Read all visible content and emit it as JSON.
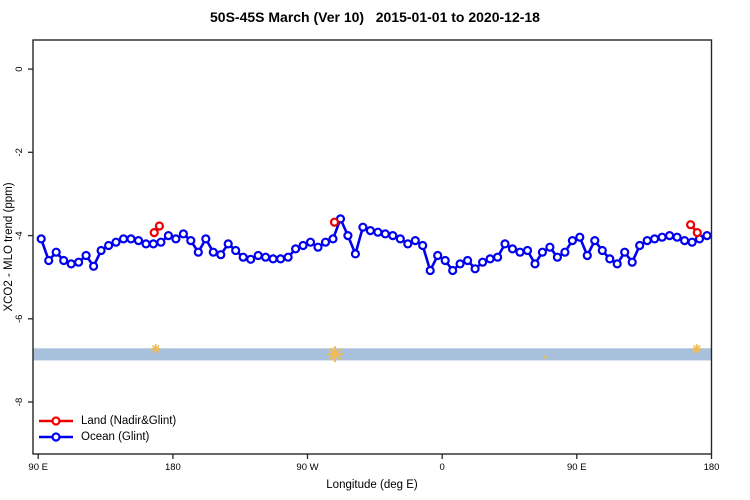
{
  "header": {
    "title": "50S-45S March (Ver 10)   2015-01-01 to 2020-12-18"
  },
  "axes": {
    "x_label": "Longitude (deg E)",
    "y_label": "XCO2 - MLO trend (ppm)"
  },
  "legend": {
    "position": "bottom-left",
    "items": [
      {
        "label": "Land (Nadir&Glint)",
        "color": "#ee0000"
      },
      {
        "label": "Ocean (Glint)",
        "color": "#0000ee"
      }
    ]
  },
  "colors": {
    "axis": "#262626",
    "band": "#a9c0dc",
    "band_marker": "#f0bc55",
    "land": "#ee0000",
    "ocean": "#0000ee",
    "background": "#ffffff"
  },
  "chart_data": {
    "type": "line",
    "title": "50S-45S March (Ver 10)   2015-01-01 to 2020-12-18",
    "xlabel": "Longitude (deg E)",
    "ylabel": "XCO2 - MLO trend (ppm)",
    "xlim": [
      86.5,
      540
    ],
    "ylim": [
      -9.25,
      0.7
    ],
    "grid": false,
    "x_ticks": [
      {
        "value": 90,
        "label": "90 E"
      },
      {
        "value": 180,
        "label": "180"
      },
      {
        "value": 270,
        "label": "90 W"
      },
      {
        "value": 360,
        "label": "0"
      },
      {
        "value": 450,
        "label": "90 E"
      },
      {
        "value": 540,
        "label": "180"
      }
    ],
    "y_ticks": [
      {
        "value": 0,
        "label": "0"
      },
      {
        "value": -2,
        "label": "-2"
      },
      {
        "value": -4,
        "label": "-4"
      },
      {
        "value": -6,
        "label": "-6"
      },
      {
        "value": -8,
        "label": "-8"
      }
    ],
    "series": [
      {
        "name": "Land (Nadir&Glint)",
        "color": "#ee0000",
        "marker": "open-circle",
        "segments": [
          [
            [
              167.5,
              -3.93
            ],
            [
              171,
              -3.77
            ]
          ],
          [
            [
              288,
              -3.68
            ]
          ],
          [
            [
              526,
              -3.74
            ],
            [
              530.5,
              -3.93
            ]
          ]
        ]
      },
      {
        "name": "Ocean (Glint)",
        "color": "#0000ee",
        "marker": "open-circle",
        "x": [
          92,
          97,
          102,
          107,
          112,
          117,
          122,
          127,
          132,
          137,
          142,
          147,
          152,
          157,
          162,
          167,
          172,
          177,
          182,
          187,
          192,
          197,
          202,
          207,
          212,
          217,
          222,
          227,
          232,
          237,
          242,
          247,
          252,
          257,
          262,
          267,
          272,
          277,
          282,
          287,
          292,
          297,
          302,
          307,
          312,
          317,
          322,
          327,
          332,
          337,
          342,
          347,
          352,
          357,
          362,
          367,
          372,
          377,
          382,
          387,
          392,
          397,
          402,
          407,
          412,
          417,
          422,
          427,
          432,
          437,
          442,
          447,
          452,
          457,
          462,
          467,
          472,
          477,
          482,
          487,
          492,
          497,
          502,
          507,
          512,
          517,
          522,
          527,
          532,
          537
        ],
        "values": [
          -4.08,
          -4.6,
          -4.4,
          -4.6,
          -4.68,
          -4.64,
          -4.48,
          -4.74,
          -4.36,
          -4.24,
          -4.16,
          -4.08,
          -4.08,
          -4.12,
          -4.2,
          -4.2,
          -4.16,
          -4.0,
          -4.08,
          -3.96,
          -4.12,
          -4.4,
          -4.08,
          -4.4,
          -4.46,
          -4.2,
          -4.36,
          -4.52,
          -4.57,
          -4.48,
          -4.52,
          -4.56,
          -4.56,
          -4.52,
          -4.32,
          -4.24,
          -4.16,
          -4.28,
          -4.16,
          -4.08,
          -3.6,
          -4.0,
          -4.44,
          -3.8,
          -3.88,
          -3.92,
          -3.96,
          -4.0,
          -4.08,
          -4.2,
          -4.12,
          -4.24,
          -4.84,
          -4.48,
          -4.6,
          -4.84,
          -4.68,
          -4.6,
          -4.8,
          -4.64,
          -4.56,
          -4.52,
          -4.2,
          -4.32,
          -4.4,
          -4.36,
          -4.68,
          -4.4,
          -4.28,
          -4.52,
          -4.4,
          -4.12,
          -4.04,
          -4.48,
          -4.12,
          -4.36,
          -4.56,
          -4.68,
          -4.4,
          -4.64,
          -4.24,
          -4.12,
          -4.08,
          -4.04,
          -4.0,
          -4.04,
          -4.12,
          -4.16,
          -4.08,
          -4.0
        ]
      }
    ],
    "band": {
      "color": "#a9c0dc",
      "x_from": 86.5,
      "x_to": 540,
      "y_from": -6.71,
      "y_to": -7.0,
      "markers": {
        "color": "#f0bc55",
        "points": [
          {
            "x": 168.5,
            "y": -6.72,
            "size": 4
          },
          {
            "x": 288.3,
            "y": -6.85,
            "size": 7
          },
          {
            "x": 428.6,
            "y": -6.92,
            "size": 2
          },
          {
            "x": 530.2,
            "y": -6.72,
            "size": 4
          }
        ]
      }
    }
  }
}
